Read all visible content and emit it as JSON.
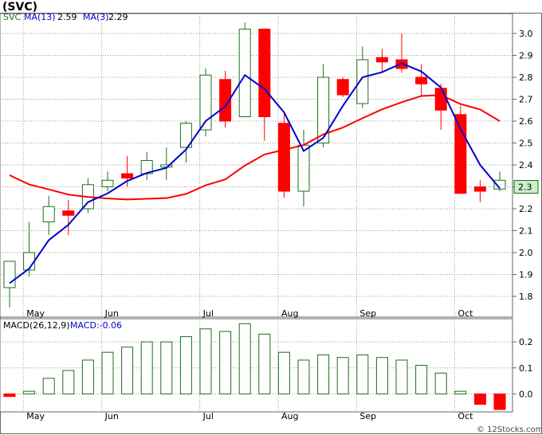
{
  "title": "(SVC)",
  "watermark": "© 12Stocks.com",
  "colors": {
    "up": "#1e6e1e",
    "down": "#ff0000",
    "ma13": "#ff0000",
    "ma3": "#0000cc",
    "grid": "#999999",
    "badge_fill": "#c8f0c8",
    "badge_stroke": "#1e6e1e",
    "ma_legend": "#0000cc"
  },
  "chart_data": [
    {
      "type": "candlestick",
      "ticker": "SVC",
      "legend": {
        "ticker_label": "SVC",
        "ma13_label": "MA(13)",
        "ma13_value": "2.59",
        "ma3_label": "MA(3)",
        "ma3_value": "2.29"
      },
      "last_price_label": "2.3",
      "last_price": 2.3,
      "ylim": [
        1.72,
        3.08
      ],
      "y_ticks": [
        1.8,
        1.9,
        2.0,
        2.1,
        2.2,
        2.3,
        2.4,
        2.5,
        2.6,
        2.7,
        2.8,
        2.9,
        3.0
      ],
      "y_tick_labels": [
        "1.8",
        "1.9",
        "2.0",
        "2.1",
        "2.2",
        "2.3",
        "2.4",
        "2.5",
        "2.6",
        "2.7",
        "2.8",
        "2.9",
        "3.0"
      ],
      "month_labels": [
        "May",
        "Jun",
        "Jul",
        "Aug",
        "Sep",
        "Oct"
      ],
      "month_start_index": [
        1,
        5,
        10,
        14,
        18,
        23
      ],
      "grid": true,
      "candles": [
        {
          "open": 1.84,
          "high": 1.96,
          "low": 1.75,
          "close": 1.96
        },
        {
          "open": 1.92,
          "high": 2.14,
          "low": 1.89,
          "close": 2.0
        },
        {
          "open": 2.14,
          "high": 2.26,
          "low": 2.08,
          "close": 2.21
        },
        {
          "open": 2.19,
          "high": 2.24,
          "low": 2.08,
          "close": 2.17
        },
        {
          "open": 2.2,
          "high": 2.34,
          "low": 2.18,
          "close": 2.31
        },
        {
          "open": 2.3,
          "high": 2.37,
          "low": 2.28,
          "close": 2.33
        },
        {
          "open": 2.36,
          "high": 2.44,
          "low": 2.3,
          "close": 2.34
        },
        {
          "open": 2.36,
          "high": 2.46,
          "low": 2.33,
          "close": 2.42
        },
        {
          "open": 2.39,
          "high": 2.48,
          "low": 2.33,
          "close": 2.4
        },
        {
          "open": 2.48,
          "high": 2.6,
          "low": 2.41,
          "close": 2.59
        },
        {
          "open": 2.56,
          "high": 2.84,
          "low": 2.53,
          "close": 2.81
        },
        {
          "open": 2.79,
          "high": 2.83,
          "low": 2.57,
          "close": 2.6
        },
        {
          "open": 2.62,
          "high": 3.05,
          "low": 2.62,
          "close": 3.02
        },
        {
          "open": 3.02,
          "high": 3.02,
          "low": 2.51,
          "close": 2.62
        },
        {
          "open": 2.59,
          "high": 2.64,
          "low": 2.25,
          "close": 2.28
        },
        {
          "open": 2.28,
          "high": 2.56,
          "low": 2.21,
          "close": 2.49
        },
        {
          "open": 2.5,
          "high": 2.86,
          "low": 2.48,
          "close": 2.8
        },
        {
          "open": 2.79,
          "high": 2.8,
          "low": 2.71,
          "close": 2.72
        },
        {
          "open": 2.68,
          "high": 2.94,
          "low": 2.66,
          "close": 2.88
        },
        {
          "open": 2.89,
          "high": 2.93,
          "low": 2.82,
          "close": 2.87
        },
        {
          "open": 2.88,
          "high": 3.0,
          "low": 2.82,
          "close": 2.84
        },
        {
          "open": 2.8,
          "high": 2.86,
          "low": 2.71,
          "close": 2.77
        },
        {
          "open": 2.75,
          "high": 2.77,
          "low": 2.56,
          "close": 2.65
        },
        {
          "open": 2.63,
          "high": 2.67,
          "low": 2.27,
          "close": 2.27
        },
        {
          "open": 2.3,
          "high": 2.33,
          "low": 2.23,
          "close": 2.28
        },
        {
          "open": 2.29,
          "high": 2.37,
          "low": 2.28,
          "close": 2.33
        }
      ],
      "ma13": [
        null,
        2.4,
        null,
        2.33,
        2.3,
        2.27,
        2.22,
        2.18,
        null,
        2.17,
        2.14,
        2.12,
        null,
        2.17,
        2.19,
        null,
        2.21,
        null,
        2.26,
        null,
        2.33,
        2.4,
        2.46,
        2.55,
        2.63,
        2.73,
        2.81,
        2.8,
        2.69,
        2.64,
        2.47,
        2.54,
        2.62,
        2.69,
        2.75,
        2.81,
        2.84,
        2.86,
        2.82,
        2.76,
        2.71,
        2.67,
        2.64,
        2.59
      ],
      "ma13_x": [],
      "ma3": []
    },
    {
      "type": "bar",
      "legend": {
        "label": "MACD(26,12,9)",
        "value_label": "MACD:-0.06"
      },
      "ylim": [
        -0.06,
        0.28
      ],
      "y_ticks": [
        0.0,
        0.1,
        0.2
      ],
      "y_tick_labels": [
        "0.0",
        "0.1",
        "0.2"
      ],
      "month_labels": [
        "May",
        "Jun",
        "Jul",
        "Aug",
        "Sep",
        "Oct"
      ],
      "values": [
        -0.01,
        0.01,
        0.06,
        0.09,
        0.13,
        0.16,
        0.18,
        0.2,
        0.2,
        0.22,
        0.25,
        0.24,
        0.27,
        0.23,
        0.16,
        0.13,
        0.15,
        0.14,
        0.15,
        0.14,
        0.13,
        0.11,
        0.08,
        0.01,
        -0.04,
        -0.06
      ]
    }
  ]
}
